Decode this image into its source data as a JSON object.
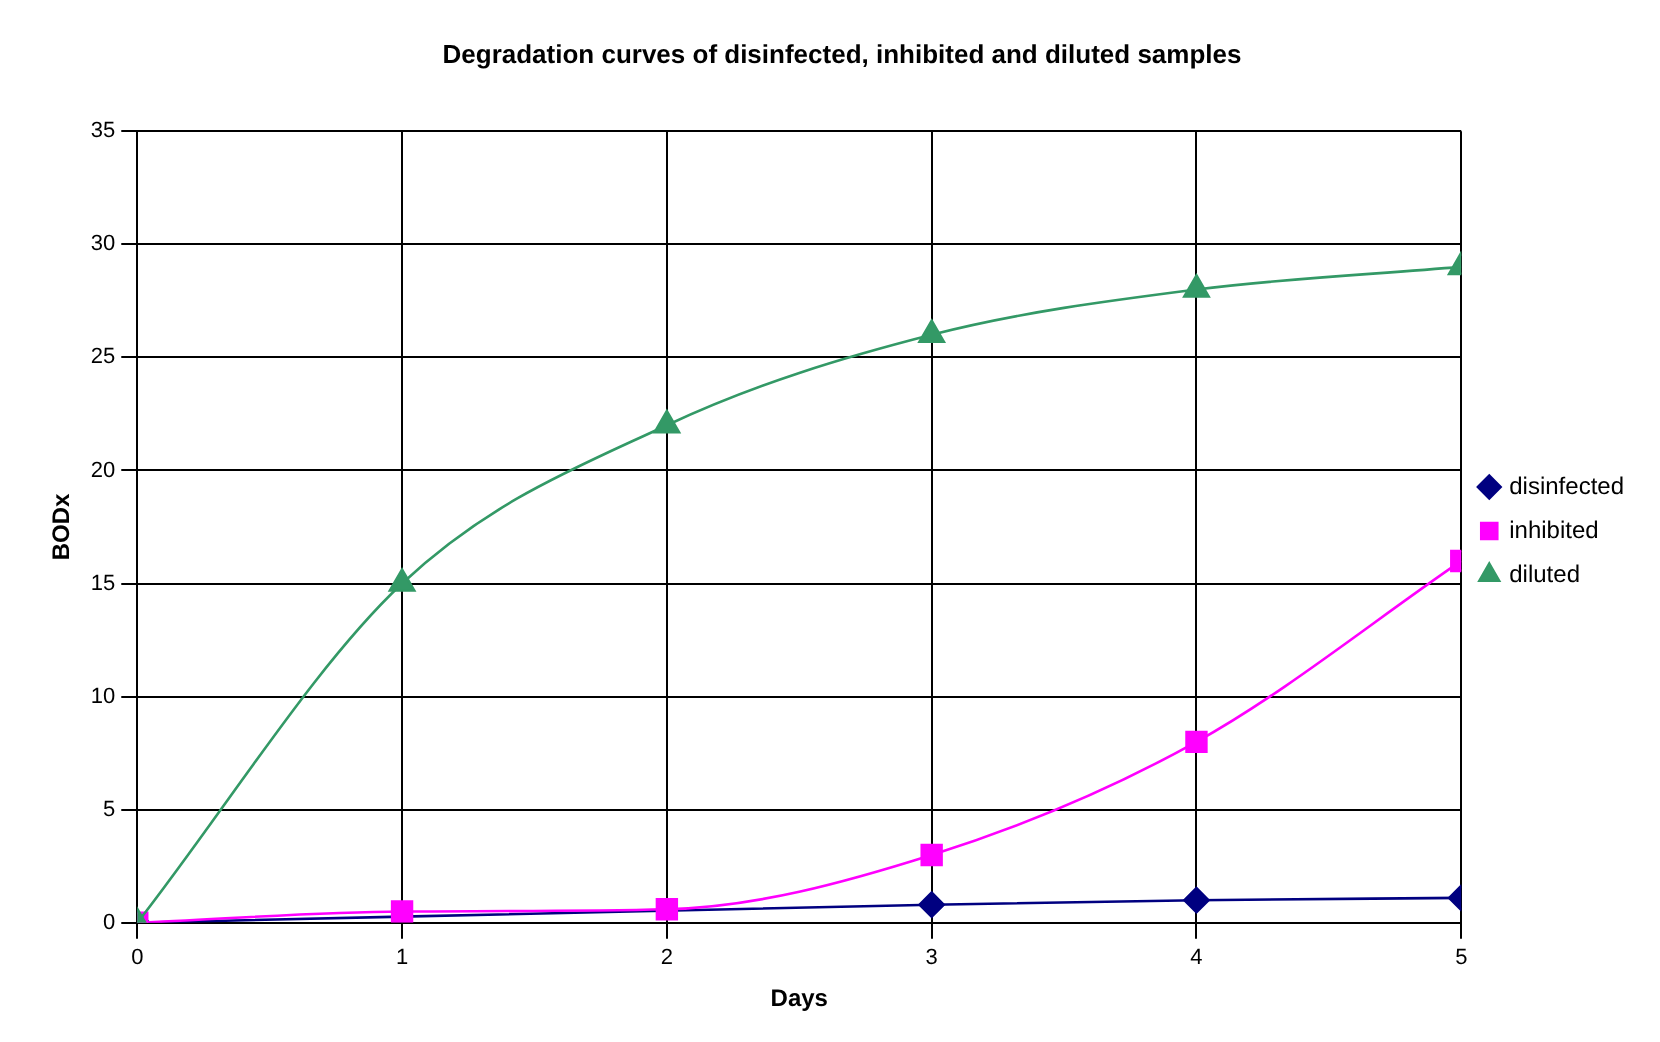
{
  "chart_data": {
    "type": "line",
    "title": "Degradation curves of disinfected, inhibited and diluted samples",
    "xlabel": "Days",
    "ylabel": "BODx",
    "x": [
      0,
      1,
      2,
      3,
      4,
      5
    ],
    "series": [
      {
        "name": "disinfected",
        "color": "#000080",
        "marker": "diamond",
        "values": [
          0,
          null,
          null,
          0.8,
          1,
          1.1
        ]
      },
      {
        "name": "inhibited",
        "color": "#ff00ff",
        "marker": "square",
        "values": [
          0,
          0.5,
          0.6,
          3,
          8,
          16
        ]
      },
      {
        "name": "diluted",
        "color": "#339966",
        "marker": "triangle",
        "values": [
          0,
          15,
          22,
          26,
          28,
          29
        ]
      }
    ],
    "xlim": [
      0,
      5
    ],
    "xticks": [
      0,
      1,
      2,
      3,
      4,
      5
    ],
    "ylim": [
      0,
      35
    ],
    "yticks": [
      0,
      5,
      10,
      15,
      20,
      25,
      30,
      35
    ],
    "grid": true,
    "legend": "right"
  }
}
